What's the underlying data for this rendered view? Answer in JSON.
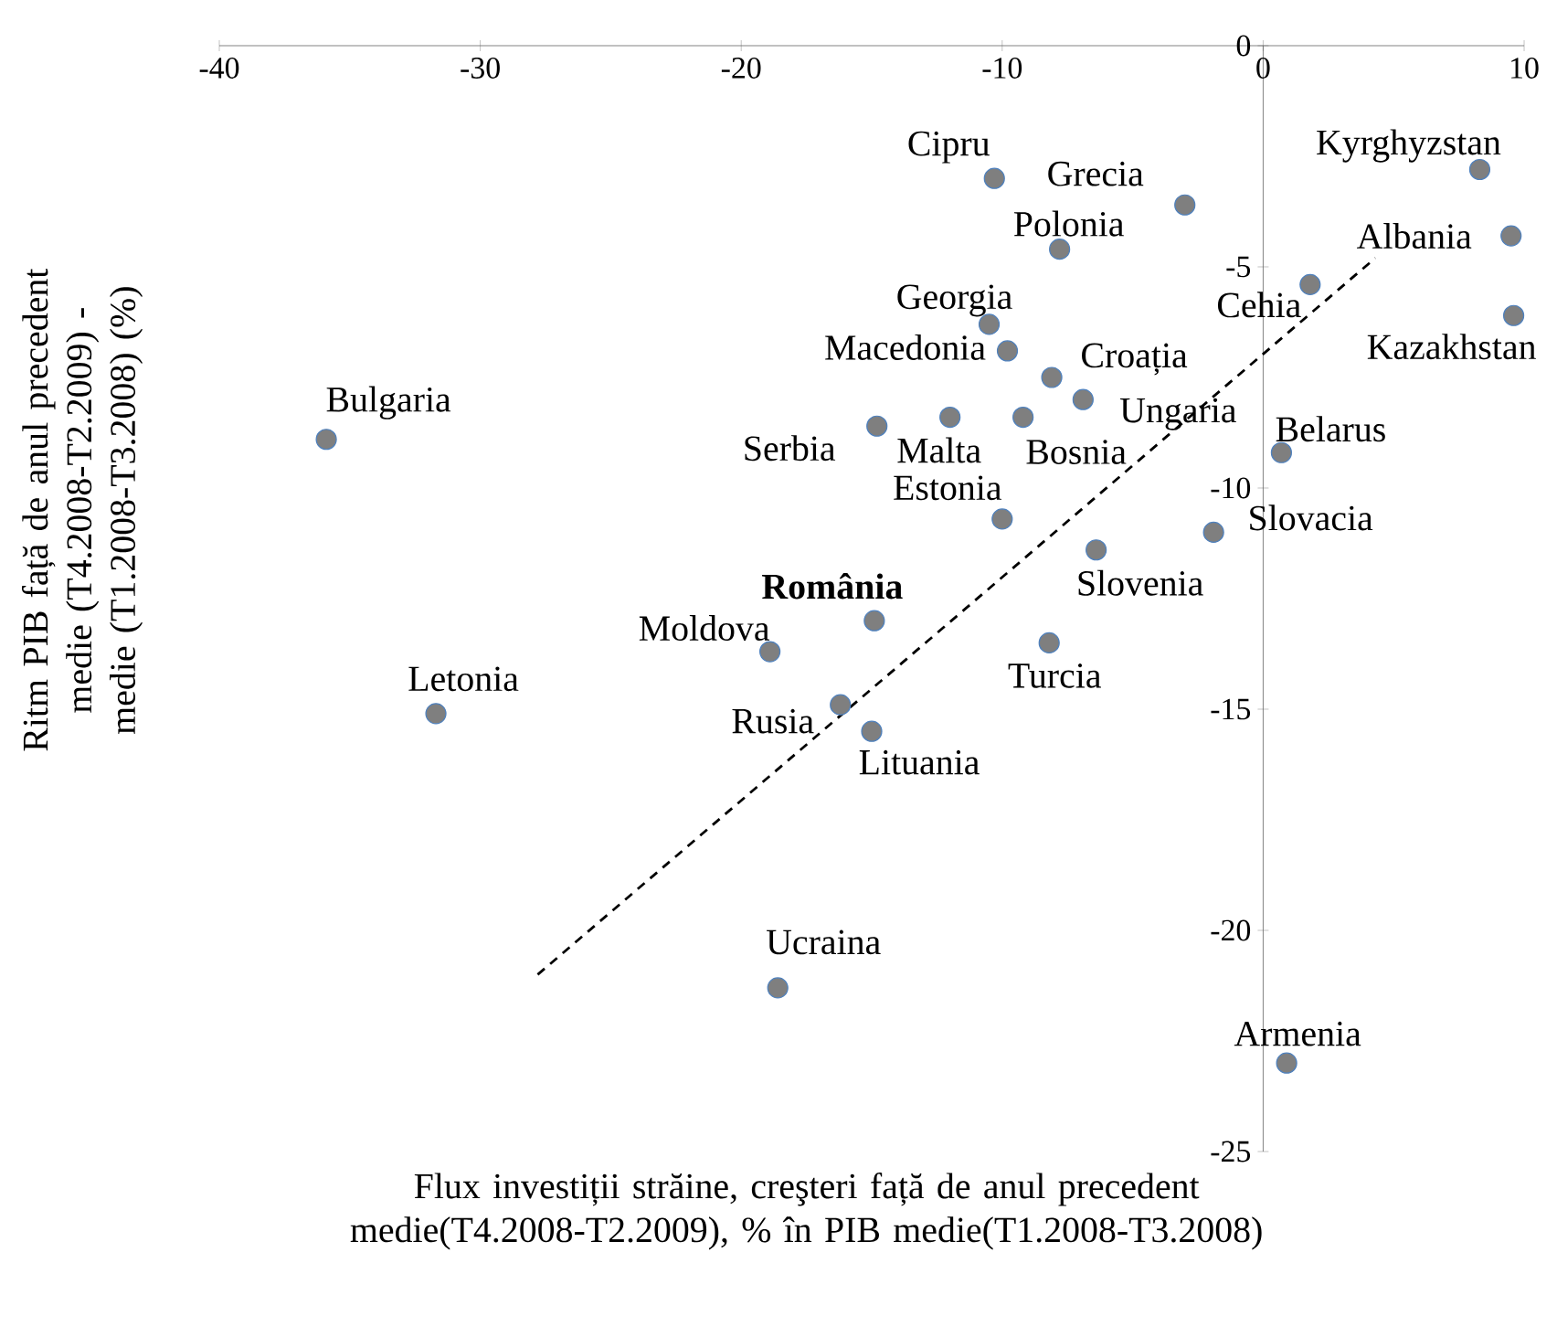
{
  "chart_data": {
    "type": "scatter",
    "xlabel": "Flux investiții străine, creşteri față de anul precedent medie(T4.2008-T2.2009), % în PIB medie(T1.2008-T3.2008)",
    "ylabel": "Ritm PIB față de anul precedent medie (T4.2008-T2.2009) - medie (T1.2008-T3.2008) (%)",
    "xlim": [
      -40,
      10
    ],
    "ylim": [
      -25,
      0
    ],
    "xticks": [
      -40,
      -30,
      -20,
      -10,
      0,
      10
    ],
    "yticks": [
      -25,
      -20,
      -15,
      -10,
      -5,
      0
    ],
    "marker": "circle",
    "series": [
      {
        "color": "#7f7f7f",
        "x": [
          -10.3,
          -3.0,
          8.3,
          9.5,
          -7.8,
          1.8,
          9.6,
          -10.5,
          -9.8,
          -8.1,
          -6.9,
          -14.8,
          -12.0,
          -9.2,
          -35.9,
          0.7,
          -10.0,
          -6.4,
          -1.9,
          -14.9,
          -18.9,
          -8.2,
          -31.7,
          -16.2,
          -15.0,
          -18.6,
          0.9
        ],
        "values": [
          -3.0,
          -3.6,
          -2.8,
          -4.3,
          -4.6,
          -5.4,
          -6.1,
          -6.3,
          -6.9,
          -7.5,
          -8.0,
          -8.6,
          -8.4,
          -8.4,
          -8.9,
          -9.2,
          -10.7,
          -11.4,
          -11.0,
          -13.0,
          -13.7,
          -13.5,
          -15.1,
          -14.9,
          -15.5,
          -21.3,
          -23.0
        ]
      },
      {
        "type": "line",
        "color": "#000000",
        "line_style": "dashed",
        "marker": "none",
        "x": [
          -27.8,
          4.3
        ],
        "values": [
          -21.0,
          -4.8
        ]
      }
    ],
    "annotations": [
      {
        "text": "Cipru",
        "x": -10.3,
        "y": -3.0
      },
      {
        "text": "Grecia",
        "x": -3.0,
        "y": -3.6
      },
      {
        "text": "Kyrghyzstan",
        "x": 8.3,
        "y": -2.8
      },
      {
        "text": "Albania",
        "x": 9.5,
        "y": -4.3
      },
      {
        "text": "Polonia",
        "x": -7.8,
        "y": -4.6
      },
      {
        "text": "Cehia",
        "x": 1.8,
        "y": -5.4
      },
      {
        "text": "Kazakhstan",
        "x": 9.6,
        "y": -6.1
      },
      {
        "text": "Georgia",
        "x": -10.5,
        "y": -6.3
      },
      {
        "text": "Macedonia",
        "x": -9.8,
        "y": -6.9
      },
      {
        "text": "Croația",
        "x": -8.1,
        "y": -7.5
      },
      {
        "text": "Ungaria",
        "x": -6.9,
        "y": -8.0
      },
      {
        "text": "Serbia",
        "x": -14.8,
        "y": -8.6
      },
      {
        "text": "Malta",
        "x": -12.0,
        "y": -8.4
      },
      {
        "text": "Bosnia",
        "x": -9.2,
        "y": -8.4
      },
      {
        "text": "Bulgaria",
        "x": -35.9,
        "y": -8.9
      },
      {
        "text": "Belarus",
        "x": 0.7,
        "y": -9.2
      },
      {
        "text": "Estonia",
        "x": -10.0,
        "y": -10.7
      },
      {
        "text": "Slovenia",
        "x": -6.4,
        "y": -11.4
      },
      {
        "text": "Slovacia",
        "x": -1.9,
        "y": -11.0
      },
      {
        "text": "**România**",
        "x": -14.9,
        "y": -13.0
      },
      {
        "text": "Moldova",
        "x": -18.9,
        "y": -13.7
      },
      {
        "text": "Turcia",
        "x": -8.2,
        "y": -13.5
      },
      {
        "text": "Letonia",
        "x": -31.7,
        "y": -15.1
      },
      {
        "text": "Rusia",
        "x": -16.2,
        "y": -14.9
      },
      {
        "text": "Lituania",
        "x": -15.0,
        "y": -15.5
      },
      {
        "text": "Ucraina",
        "x": -18.6,
        "y": -21.3
      },
      {
        "text": "Armenia",
        "x": 0.9,
        "y": -23.0
      }
    ]
  }
}
